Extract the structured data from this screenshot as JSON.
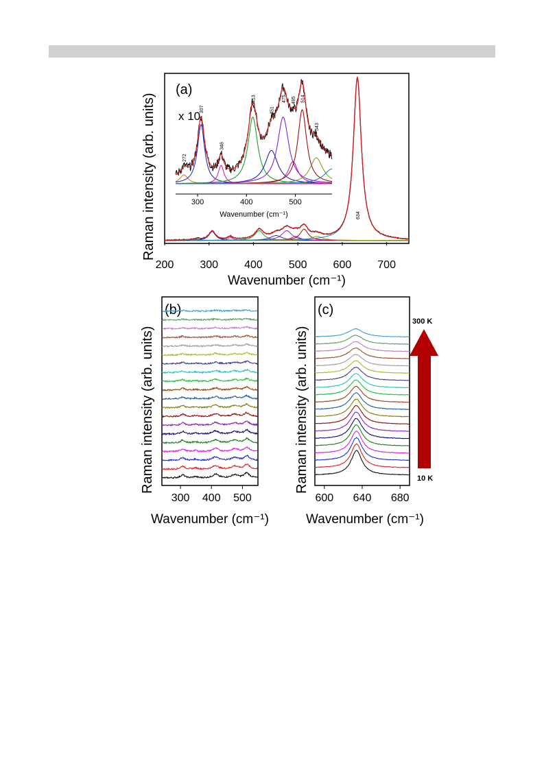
{
  "figure": {
    "panel_a": {
      "label": "(a)",
      "ylabel": "Raman intensity  (arb. units)",
      "xlabel": "Wavenumber (cm⁻¹)",
      "inset_xlabel": "Wavenumber (cm⁻¹)",
      "inset_scale": "x 10",
      "main_peak_label": "634"
    },
    "panel_b": {
      "label": "(b)",
      "ylabel": "Raman intensity (arb. units)",
      "xlabel": "Wavenumber (cm⁻¹)"
    },
    "panel_c": {
      "label": "(c)",
      "ylabel": "Raman intensity (arb. units)",
      "xlabel": "Wavenumber (cm⁻¹)",
      "arrow_top_label": "300 K",
      "arrow_bottom_label": "10 K"
    }
  },
  "colors": {
    "trace_colors": [
      "#111111",
      "#e02020",
      "#2030d0",
      "#e020e0",
      "#208020",
      "#101080",
      "#9020c0",
      "#901010",
      "#808010",
      "#2060a0",
      "#a04010",
      "#20c040",
      "#30c0c0",
      "#404090",
      "#a0c030",
      "#a0a0a0",
      "#a05030",
      "#c080c0",
      "#60a060",
      "#40a0d0"
    ],
    "fit_red": "#e02020",
    "arrow_red": "#b00000"
  },
  "chart_data": [
    {
      "type": "line",
      "panel": "a",
      "xlim": [
        200,
        750
      ],
      "x_ticks": [
        200,
        300,
        400,
        500,
        600,
        700
      ],
      "peaks": [
        {
          "center": 272,
          "height": 0.008,
          "width": 10
        },
        {
          "center": 307,
          "height": 0.055,
          "width": 9
        },
        {
          "center": 348,
          "height": 0.02,
          "width": 7
        },
        {
          "center": 413,
          "height": 0.06,
          "width": 12
        },
        {
          "center": 451,
          "height": 0.03,
          "width": 16
        },
        {
          "center": 475,
          "height": 0.06,
          "width": 14
        },
        {
          "center": 495,
          "height": 0.025,
          "width": 12
        },
        {
          "center": 514,
          "height": 0.07,
          "width": 11
        },
        {
          "center": 543,
          "height": 0.025,
          "width": 16
        },
        {
          "center": 634,
          "height": 1.0,
          "width": 11
        }
      ]
    },
    {
      "type": "line",
      "panel": "a-inset",
      "xlim": [
        255,
        575
      ],
      "x_ticks": [
        300,
        400,
        500
      ],
      "peak_labels": [
        "272",
        "307",
        "348",
        "413",
        "451",
        "475",
        "495",
        "514",
        "543"
      ],
      "peak_positions": [
        272,
        307,
        348,
        413,
        451,
        475,
        495,
        514,
        543
      ],
      "components": [
        {
          "center": 272,
          "height": 0.12,
          "width": 10,
          "color": "#e08020"
        },
        {
          "center": 307,
          "height": 0.8,
          "width": 9,
          "color": "#2030d0"
        },
        {
          "center": 348,
          "height": 0.25,
          "width": 7,
          "color": "#e020a0"
        },
        {
          "center": 413,
          "height": 0.9,
          "width": 12,
          "color": "#20a020"
        },
        {
          "center": 451,
          "height": 0.45,
          "width": 16,
          "color": "#2020c0"
        },
        {
          "center": 475,
          "height": 0.9,
          "width": 14,
          "color": "#8020e0"
        },
        {
          "center": 495,
          "height": 0.3,
          "width": 12,
          "color": "#c020a0"
        },
        {
          "center": 514,
          "height": 1.0,
          "width": 11,
          "color": "#a01010"
        },
        {
          "center": 543,
          "height": 0.35,
          "width": 16,
          "color": "#80a020"
        },
        {
          "center": 575,
          "height": 0.2,
          "width": 20,
          "color": "#2080c0"
        }
      ]
    },
    {
      "type": "line",
      "panel": "b",
      "xlim": [
        240,
        550
      ],
      "x_ticks": [
        300,
        400,
        500
      ],
      "n_traces": 20,
      "peaks": [
        {
          "center": 307,
          "height": 0.5,
          "width": 8
        },
        {
          "center": 348,
          "height": 0.2,
          "width": 7
        },
        {
          "center": 413,
          "height": 0.6,
          "width": 11
        },
        {
          "center": 475,
          "height": 0.5,
          "width": 13
        },
        {
          "center": 514,
          "height": 0.8,
          "width": 10
        }
      ]
    },
    {
      "type": "line",
      "panel": "c",
      "xlim": [
        590,
        690
      ],
      "x_ticks": [
        600,
        640,
        680
      ],
      "n_traces": 20,
      "peak_center": 634,
      "peak_width": 7
    }
  ]
}
